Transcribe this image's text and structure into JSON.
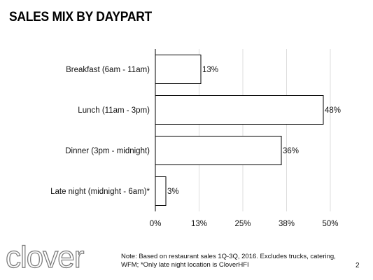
{
  "slide": {
    "title": "SALES MIX BY DAYPART",
    "note_line1": "Note: Based on restaurant sales 1Q-3Q, 2016. Excludes trucks, catering,",
    "note_line2": "WFM; *Only late night location is CloverHFI",
    "page_number": "2",
    "logo_text": "clover"
  },
  "chart_data": {
    "type": "bar",
    "orientation": "horizontal",
    "categories": [
      "Breakfast (6am - 11am)",
      "Lunch (11am - 3pm)",
      "Dinner (3pm - midnight)",
      "Late night (midnight - 6am)*"
    ],
    "values": [
      13,
      48,
      36,
      3
    ],
    "data_labels": [
      "13%",
      "48%",
      "36%",
      "3%"
    ],
    "x_ticks": [
      0,
      12.5,
      25,
      37.5,
      50
    ],
    "x_tick_labels": [
      "0%",
      "13%",
      "25%",
      "38%",
      "50%"
    ],
    "xlim": [
      0,
      50
    ],
    "grid": true,
    "bar_fill": "#ffffff",
    "bar_stroke": "#000000",
    "grid_color": "#dddddd"
  }
}
